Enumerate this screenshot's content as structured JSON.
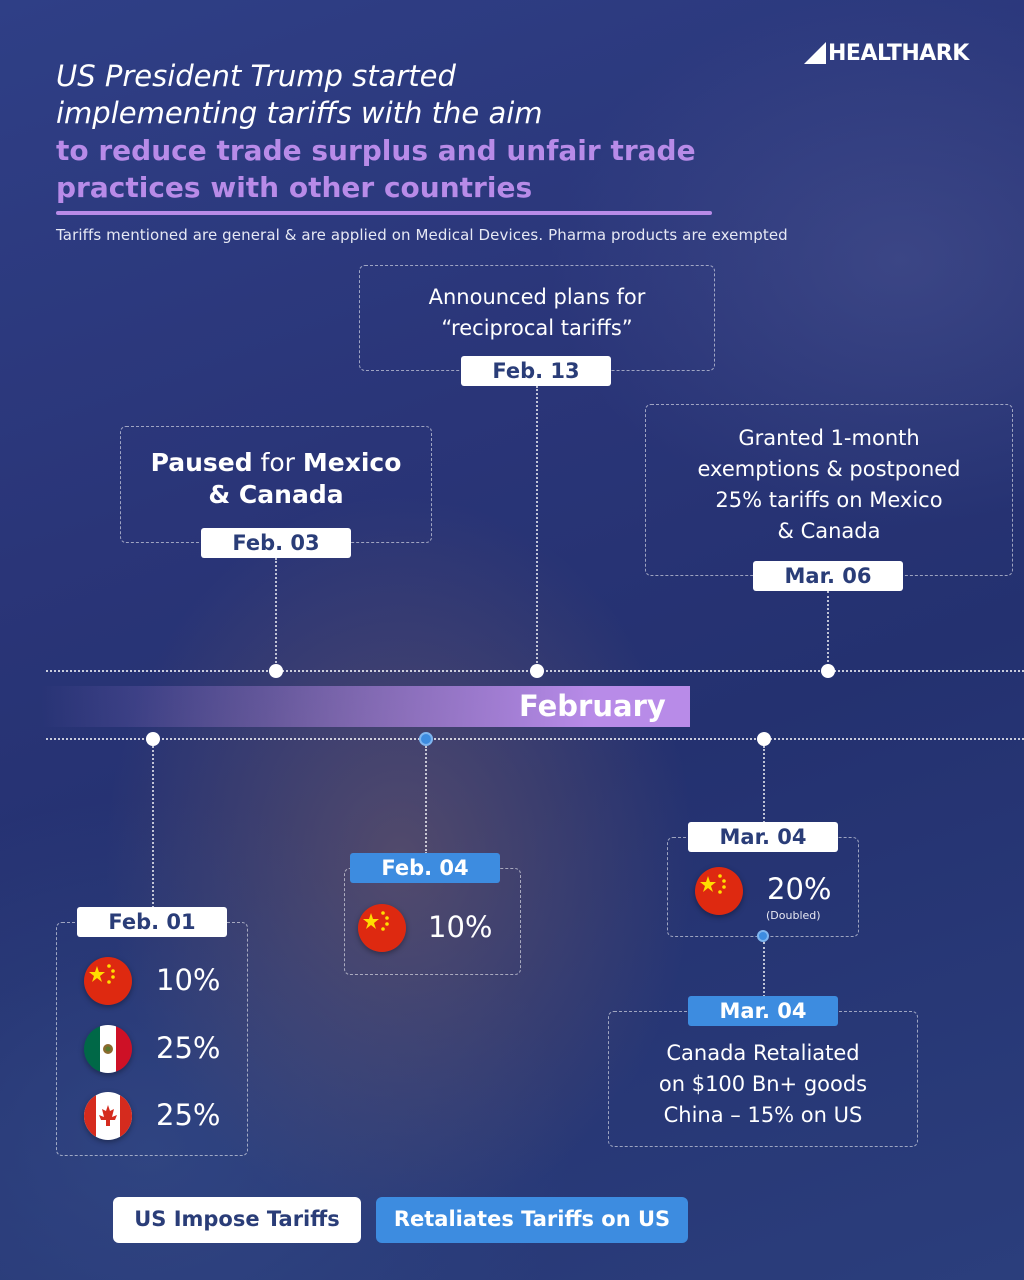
{
  "brand": {
    "name": "HEALTHARK"
  },
  "header": {
    "line1": "US President Trump started",
    "line2": "implementing tariffs with the aim",
    "line3": "to reduce trade surplus and unfair trade",
    "line4": "practices with other countries",
    "note": "Tariffs mentioned are general & are applied on Medical Devices. Pharma products are exempted"
  },
  "colors": {
    "accent_purple": "#b88be8",
    "us_tag": "#ffffff",
    "retaliation_tag": "#3d8ce0",
    "background": "#2a3578"
  },
  "timeline": {
    "month": "February",
    "above": [
      {
        "date": "Feb. 03",
        "text_parts": [
          "Paused",
          " for ",
          "Mexico",
          "& Canada"
        ]
      },
      {
        "date": "Feb. 13",
        "line1": "Announced plans for",
        "line2": "“reciprocal tariffs”"
      },
      {
        "date": "Mar. 06",
        "line1": "Granted 1-month",
        "line2": "exemptions & postponed",
        "line3": "25% tariffs on Mexico",
        "line4": "& Canada"
      }
    ],
    "below": {
      "feb01": {
        "date": "Feb. 01",
        "items": [
          {
            "country": "China",
            "flag": "china-flag-icon",
            "rate": "10%"
          },
          {
            "country": "Mexico",
            "flag": "mexico-flag-icon",
            "rate": "25%"
          },
          {
            "country": "Canada",
            "flag": "canada-flag-icon",
            "rate": "25%"
          }
        ]
      },
      "feb04": {
        "date": "Feb. 04",
        "country": "China",
        "flag": "china-flag-icon",
        "rate": "10%"
      },
      "mar04_us": {
        "date": "Mar. 04",
        "country": "China",
        "flag": "china-flag-icon",
        "rate": "20%",
        "note": "(Doubled)"
      },
      "mar04_retaliation": {
        "date": "Mar. 04",
        "line1": "Canada Retaliated",
        "line2": "on $100 Bn+ goods",
        "line3": "China – 15% on US"
      }
    }
  },
  "legend": {
    "us": "US Impose Tariffs",
    "retaliation": "Retaliates Tariffs on US"
  }
}
